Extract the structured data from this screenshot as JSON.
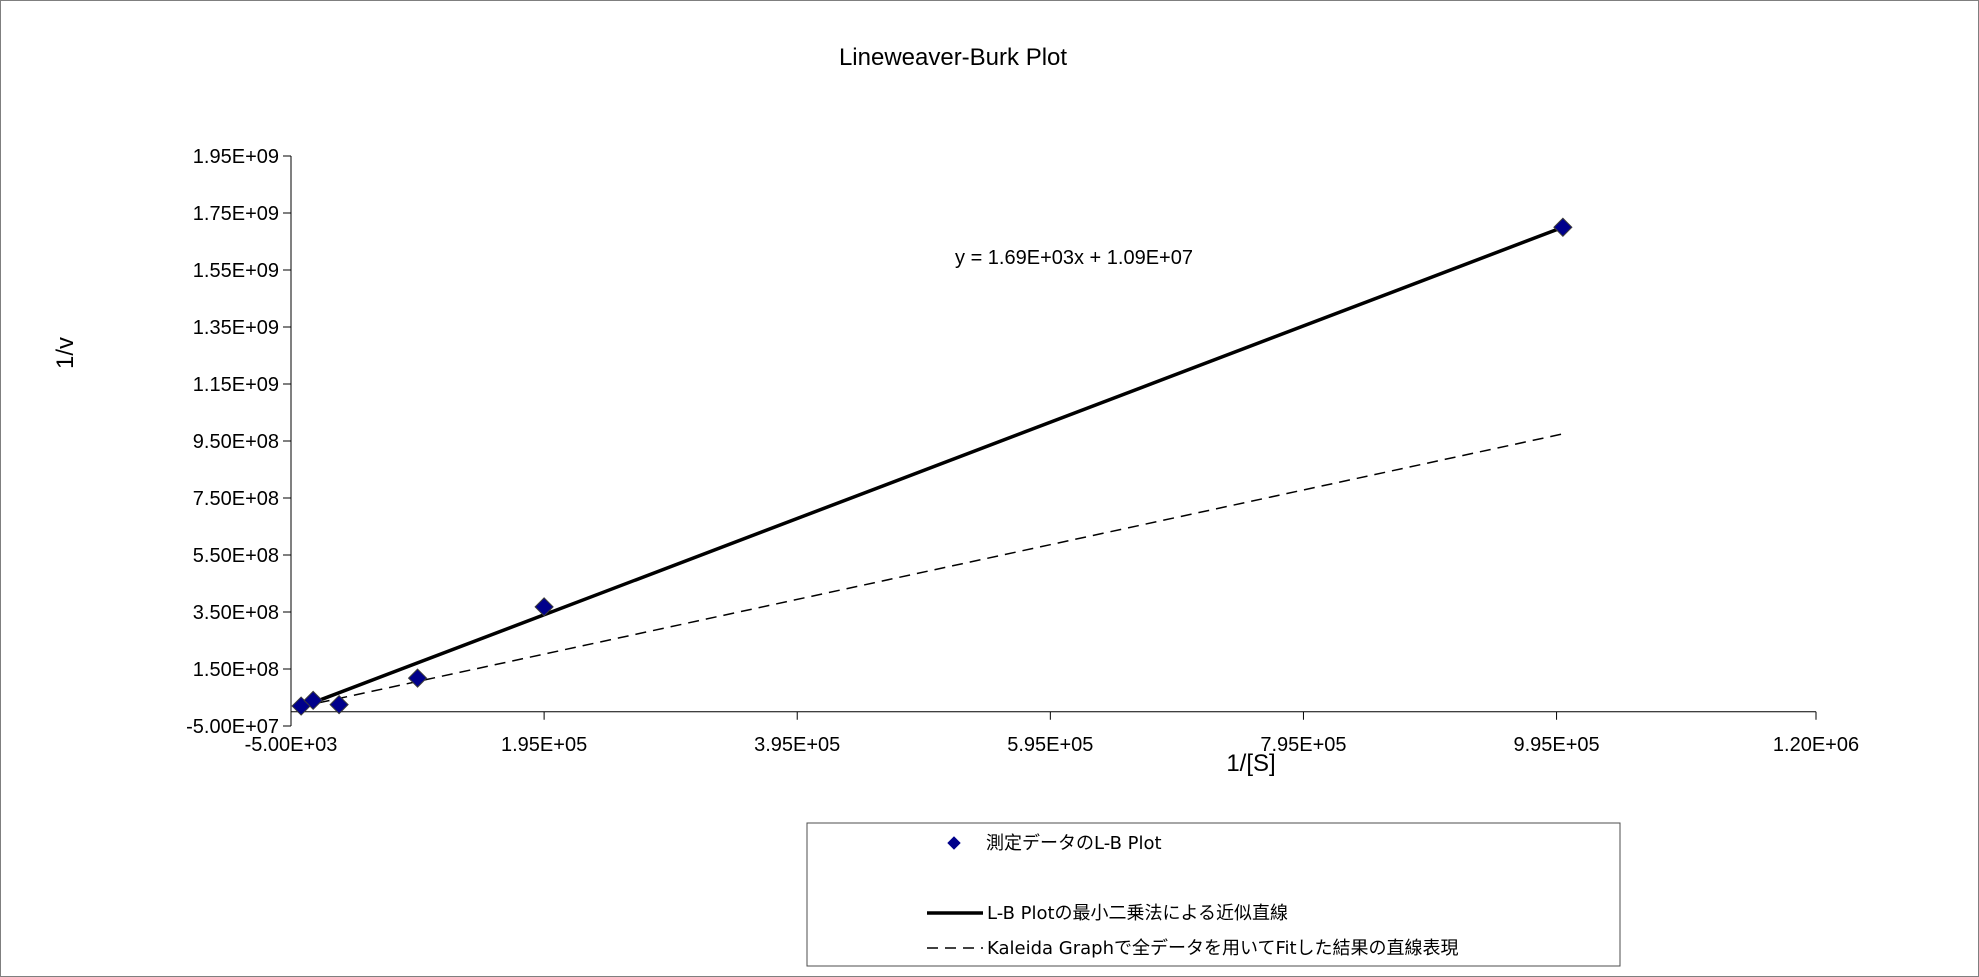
{
  "chart_data": {
    "type": "scatter",
    "title": "Lineweaver-Burk Plot",
    "xlabel": "1/[S]",
    "ylabel": "1/v",
    "xlim": [
      -5000,
      1200000
    ],
    "ylim": [
      -50000000,
      1950000000
    ],
    "x_ticks": [
      -5000,
      195000,
      395000,
      595000,
      795000,
      995000,
      1200000
    ],
    "x_tick_labels": [
      "-5.00E+03",
      "1.95E+05",
      "3.95E+05",
      "5.95E+05",
      "7.95E+05",
      "9.95E+05",
      "1.20E+06"
    ],
    "y_ticks": [
      -50000000,
      150000000,
      350000000,
      550000000,
      750000000,
      950000000,
      1150000000,
      1350000000,
      1550000000,
      1750000000,
      1950000000
    ],
    "y_tick_labels": [
      "-5.00E+07",
      "1.50E+08",
      "3.50E+08",
      "5.50E+08",
      "7.50E+08",
      "9.50E+08",
      "1.15E+09",
      "1.35E+09",
      "1.55E+09",
      "1.75E+09",
      "1.95E+09"
    ],
    "grid": false,
    "legend_position": "bottom",
    "equation": "y = 1.69E+03x + 1.09E+07",
    "series": [
      {
        "name": "測定データのL-B Plot",
        "kind": "scatter",
        "marker": "diamond",
        "color": "#00008B",
        "x": [
          3000,
          12500,
          33000,
          95000,
          195000,
          1000000
        ],
        "y": [
          20000000,
          40000000,
          25000000,
          118000000,
          368000000,
          1700000000
        ]
      },
      {
        "name": "L-B Plotの最小二乗法による近似直線",
        "kind": "line",
        "style": "solid",
        "color": "#000000",
        "x": [
          3000,
          1000000
        ],
        "y": [
          16000000,
          1700000000
        ]
      },
      {
        "name": "Kaleida Graphで全データを用いてFitした結果の直線表現",
        "kind": "line",
        "style": "dashed",
        "color": "#000000",
        "x": [
          3000,
          1000000
        ],
        "y": [
          18000000,
          975000000
        ]
      }
    ]
  }
}
